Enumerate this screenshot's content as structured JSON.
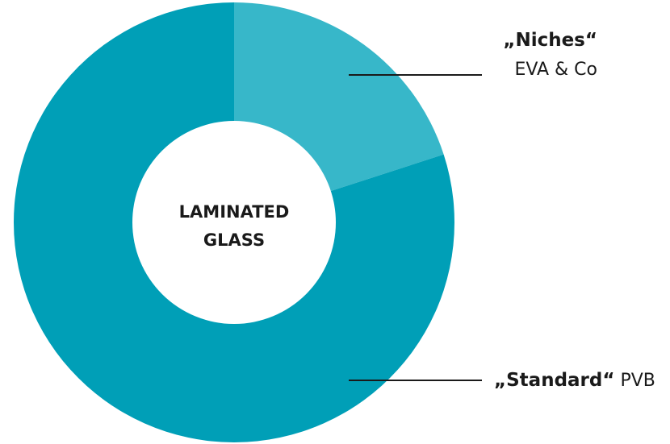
{
  "chart_data": {
    "type": "pie",
    "center_label": [
      "LAMINATED",
      "GLASS"
    ],
    "slices": [
      {
        "label_bold": "„Niches“",
        "label_sub": "EVA & Co",
        "value": 20,
        "color": "#37b7c9"
      },
      {
        "label_bold": "„Standard“",
        "label_sub": "PVB",
        "value": 80,
        "color": "#009fb7"
      }
    ]
  }
}
